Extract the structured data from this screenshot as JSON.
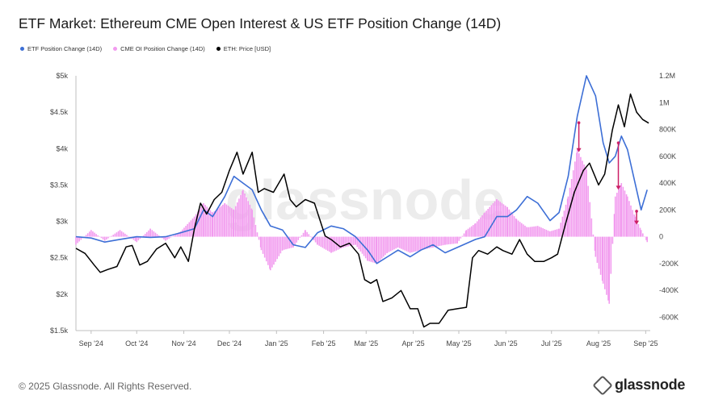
{
  "title": "ETF Market: Ethereum CME Open Interest & US ETF Position Change (14D)",
  "legend": [
    {
      "label": "ETF Position Change (14D)",
      "color": "#3d6fd6"
    },
    {
      "label": "CME OI Position Change (14D)",
      "color": "#f29bef"
    },
    {
      "label": "ETH: Price [USD]",
      "color": "#000000"
    }
  ],
  "footer": "© 2025 Glassnode. All Rights Reserved.",
  "brand": "glassnode",
  "watermark": "glassnode",
  "chart_data": {
    "type": "line",
    "x_tick_labels": [
      "Sep '24",
      "Oct '24",
      "Nov '24",
      "Dec '24",
      "Jan '25",
      "Feb '25",
      "Mar '25",
      "Apr '25",
      "May '25",
      "Jun '25",
      "Jul '25",
      "Aug '25",
      "Sep '25"
    ],
    "y_left": {
      "ticks": [
        1500,
        2000,
        2500,
        3000,
        3500,
        4000,
        4500,
        5000
      ],
      "tick_labels": [
        "$1.5k",
        "$2k",
        "$2.5k",
        "$3k",
        "$3.5k",
        "$4k",
        "$4.5k",
        "$5k"
      ],
      "range": [
        1500,
        5000
      ]
    },
    "y_right": {
      "ticks": [
        -600000,
        -400000,
        -200000,
        0,
        200000,
        400000,
        600000,
        800000,
        1000000,
        1200000
      ],
      "tick_labels": [
        "-600K",
        "-400K",
        "-200K",
        "0",
        "200K",
        "400K",
        "600K",
        "800K",
        "1M",
        "1.2M"
      ],
      "range": [
        -700000,
        1200000
      ]
    },
    "grid": false,
    "series": [
      {
        "name": "ETH: Price [USD]",
        "axis": "left",
        "color": "#000000",
        "style": "line",
        "points": [
          [
            "2024-08-22",
            2630
          ],
          [
            "2024-08-28",
            2560
          ],
          [
            "2024-09-03",
            2400
          ],
          [
            "2024-09-07",
            2300
          ],
          [
            "2024-09-12",
            2340
          ],
          [
            "2024-09-18",
            2380
          ],
          [
            "2024-09-24",
            2650
          ],
          [
            "2024-09-28",
            2670
          ],
          [
            "2024-10-03",
            2400
          ],
          [
            "2024-10-08",
            2450
          ],
          [
            "2024-10-14",
            2620
          ],
          [
            "2024-10-20",
            2700
          ],
          [
            "2024-10-26",
            2500
          ],
          [
            "2024-10-30",
            2650
          ],
          [
            "2024-11-04",
            2450
          ],
          [
            "2024-11-08",
            2900
          ],
          [
            "2024-11-12",
            3250
          ],
          [
            "2024-11-16",
            3100
          ],
          [
            "2024-11-21",
            3300
          ],
          [
            "2024-11-26",
            3400
          ],
          [
            "2024-12-01",
            3700
          ],
          [
            "2024-12-06",
            3950
          ],
          [
            "2024-12-10",
            3650
          ],
          [
            "2024-12-16",
            3950
          ],
          [
            "2024-12-20",
            3400
          ],
          [
            "2024-12-24",
            3450
          ],
          [
            "2024-12-30",
            3400
          ],
          [
            "2025-01-06",
            3650
          ],
          [
            "2025-01-10",
            3300
          ],
          [
            "2025-01-14",
            3200
          ],
          [
            "2025-01-20",
            3300
          ],
          [
            "2025-01-26",
            3250
          ],
          [
            "2025-02-02",
            2800
          ],
          [
            "2025-02-06",
            2750
          ],
          [
            "2025-02-12",
            2650
          ],
          [
            "2025-02-18",
            2700
          ],
          [
            "2025-02-24",
            2550
          ],
          [
            "2025-02-28",
            2200
          ],
          [
            "2025-03-04",
            2150
          ],
          [
            "2025-03-08",
            2200
          ],
          [
            "2025-03-12",
            1900
          ],
          [
            "2025-03-18",
            1950
          ],
          [
            "2025-03-24",
            2050
          ],
          [
            "2025-03-30",
            1800
          ],
          [
            "2025-04-04",
            1800
          ],
          [
            "2025-04-08",
            1550
          ],
          [
            "2025-04-12",
            1600
          ],
          [
            "2025-04-18",
            1600
          ],
          [
            "2025-04-24",
            1780
          ],
          [
            "2025-04-30",
            1800
          ],
          [
            "2025-05-06",
            1820
          ],
          [
            "2025-05-10",
            2500
          ],
          [
            "2025-05-14",
            2600
          ],
          [
            "2025-05-20",
            2550
          ],
          [
            "2025-05-26",
            2650
          ],
          [
            "2025-05-30",
            2600
          ],
          [
            "2025-06-05",
            2550
          ],
          [
            "2025-06-10",
            2750
          ],
          [
            "2025-06-15",
            2550
          ],
          [
            "2025-06-20",
            2450
          ],
          [
            "2025-06-26",
            2450
          ],
          [
            "2025-07-01",
            2500
          ],
          [
            "2025-07-05",
            2550
          ],
          [
            "2025-07-10",
            2950
          ],
          [
            "2025-07-16",
            3400
          ],
          [
            "2025-07-22",
            3700
          ],
          [
            "2025-07-26",
            3800
          ],
          [
            "2025-08-01",
            3500
          ],
          [
            "2025-08-05",
            3650
          ],
          [
            "2025-08-10",
            4250
          ],
          [
            "2025-08-14",
            4600
          ],
          [
            "2025-08-18",
            4300
          ],
          [
            "2025-08-22",
            4750
          ],
          [
            "2025-08-26",
            4500
          ],
          [
            "2025-08-30",
            4400
          ],
          [
            "2025-09-03",
            4350
          ]
        ]
      },
      {
        "name": "ETF Position Change (14D)",
        "axis": "right",
        "color": "#3d6fd6",
        "style": "line",
        "points": [
          [
            "2024-08-22",
            0
          ],
          [
            "2024-09-01",
            -10000
          ],
          [
            "2024-09-10",
            -40000
          ],
          [
            "2024-09-20",
            -20000
          ],
          [
            "2024-10-01",
            0
          ],
          [
            "2024-10-10",
            -5000
          ],
          [
            "2024-10-20",
            0
          ],
          [
            "2024-10-30",
            30000
          ],
          [
            "2024-11-08",
            60000
          ],
          [
            "2024-11-14",
            200000
          ],
          [
            "2024-11-20",
            150000
          ],
          [
            "2024-11-28",
            300000
          ],
          [
            "2024-12-04",
            450000
          ],
          [
            "2024-12-10",
            400000
          ],
          [
            "2024-12-16",
            350000
          ],
          [
            "2024-12-22",
            200000
          ],
          [
            "2024-12-28",
            80000
          ],
          [
            "2025-01-05",
            50000
          ],
          [
            "2025-01-12",
            -60000
          ],
          [
            "2025-01-20",
            -80000
          ],
          [
            "2025-01-28",
            30000
          ],
          [
            "2025-02-06",
            80000
          ],
          [
            "2025-02-14",
            60000
          ],
          [
            "2025-02-22",
            0
          ],
          [
            "2025-03-02",
            -100000
          ],
          [
            "2025-03-08",
            -200000
          ],
          [
            "2025-03-15",
            -150000
          ],
          [
            "2025-03-22",
            -100000
          ],
          [
            "2025-03-30",
            -150000
          ],
          [
            "2025-04-06",
            -100000
          ],
          [
            "2025-04-14",
            -60000
          ],
          [
            "2025-04-22",
            -120000
          ],
          [
            "2025-04-30",
            -80000
          ],
          [
            "2025-05-06",
            -50000
          ],
          [
            "2025-05-12",
            -20000
          ],
          [
            "2025-05-18",
            0
          ],
          [
            "2025-05-26",
            150000
          ],
          [
            "2025-06-02",
            150000
          ],
          [
            "2025-06-08",
            200000
          ],
          [
            "2025-06-15",
            300000
          ],
          [
            "2025-06-22",
            250000
          ],
          [
            "2025-06-30",
            120000
          ],
          [
            "2025-07-06",
            180000
          ],
          [
            "2025-07-12",
            450000
          ],
          [
            "2025-07-18",
            900000
          ],
          [
            "2025-07-24",
            1200000
          ],
          [
            "2025-07-30",
            1050000
          ],
          [
            "2025-08-04",
            700000
          ],
          [
            "2025-08-08",
            550000
          ],
          [
            "2025-08-12",
            600000
          ],
          [
            "2025-08-16",
            750000
          ],
          [
            "2025-08-20",
            650000
          ],
          [
            "2025-08-25",
            400000
          ],
          [
            "2025-08-29",
            200000
          ],
          [
            "2025-09-02",
            350000
          ]
        ]
      },
      {
        "name": "CME OI Position Change (14D)",
        "axis": "right",
        "color": "#f29bef",
        "style": "bar",
        "points": [
          [
            "2024-08-22",
            -60000
          ],
          [
            "2024-09-01",
            50000
          ],
          [
            "2024-09-10",
            -30000
          ],
          [
            "2024-09-20",
            50000
          ],
          [
            "2024-10-01",
            -40000
          ],
          [
            "2024-10-10",
            60000
          ],
          [
            "2024-10-20",
            -30000
          ],
          [
            "2024-10-30",
            40000
          ],
          [
            "2024-11-08",
            150000
          ],
          [
            "2024-11-14",
            250000
          ],
          [
            "2024-11-20",
            180000
          ],
          [
            "2024-11-28",
            250000
          ],
          [
            "2024-12-04",
            200000
          ],
          [
            "2024-12-10",
            350000
          ],
          [
            "2024-12-16",
            200000
          ],
          [
            "2024-12-22",
            -100000
          ],
          [
            "2024-12-28",
            -250000
          ],
          [
            "2025-01-05",
            -100000
          ],
          [
            "2025-01-12",
            -80000
          ],
          [
            "2025-01-20",
            50000
          ],
          [
            "2025-01-28",
            -60000
          ],
          [
            "2025-02-06",
            -120000
          ],
          [
            "2025-02-14",
            -80000
          ],
          [
            "2025-02-22",
            -60000
          ],
          [
            "2025-03-02",
            -180000
          ],
          [
            "2025-03-08",
            -200000
          ],
          [
            "2025-03-15",
            -120000
          ],
          [
            "2025-03-22",
            -80000
          ],
          [
            "2025-03-30",
            -120000
          ],
          [
            "2025-04-06",
            -100000
          ],
          [
            "2025-04-14",
            -80000
          ],
          [
            "2025-04-22",
            -60000
          ],
          [
            "2025-04-30",
            -50000
          ],
          [
            "2025-05-06",
            50000
          ],
          [
            "2025-05-12",
            100000
          ],
          [
            "2025-05-18",
            180000
          ],
          [
            "2025-05-26",
            280000
          ],
          [
            "2025-06-02",
            220000
          ],
          [
            "2025-06-08",
            130000
          ],
          [
            "2025-06-15",
            70000
          ],
          [
            "2025-06-22",
            80000
          ],
          [
            "2025-06-30",
            40000
          ],
          [
            "2025-07-06",
            60000
          ],
          [
            "2025-07-12",
            300000
          ],
          [
            "2025-07-18",
            650000
          ],
          [
            "2025-07-24",
            500000
          ],
          [
            "2025-07-30",
            -150000
          ],
          [
            "2025-08-04",
            -350000
          ],
          [
            "2025-08-08",
            -500000
          ],
          [
            "2025-08-12",
            300000
          ],
          [
            "2025-08-16",
            400000
          ],
          [
            "2025-08-20",
            300000
          ],
          [
            "2025-08-25",
            150000
          ],
          [
            "2025-08-29",
            50000
          ],
          [
            "2025-09-02",
            -40000
          ]
        ]
      }
    ],
    "annotations": [
      {
        "type": "arrow",
        "color": "#cc1f66",
        "date": "2025-07-19",
        "from": 850000,
        "to": 630000
      },
      {
        "type": "arrow",
        "color": "#cc1f66",
        "date": "2025-08-14",
        "from": 700000,
        "to": 350000
      },
      {
        "type": "arrow",
        "color": "#cc1f66",
        "date": "2025-08-26",
        "from": 190000,
        "to": 90000
      }
    ]
  }
}
